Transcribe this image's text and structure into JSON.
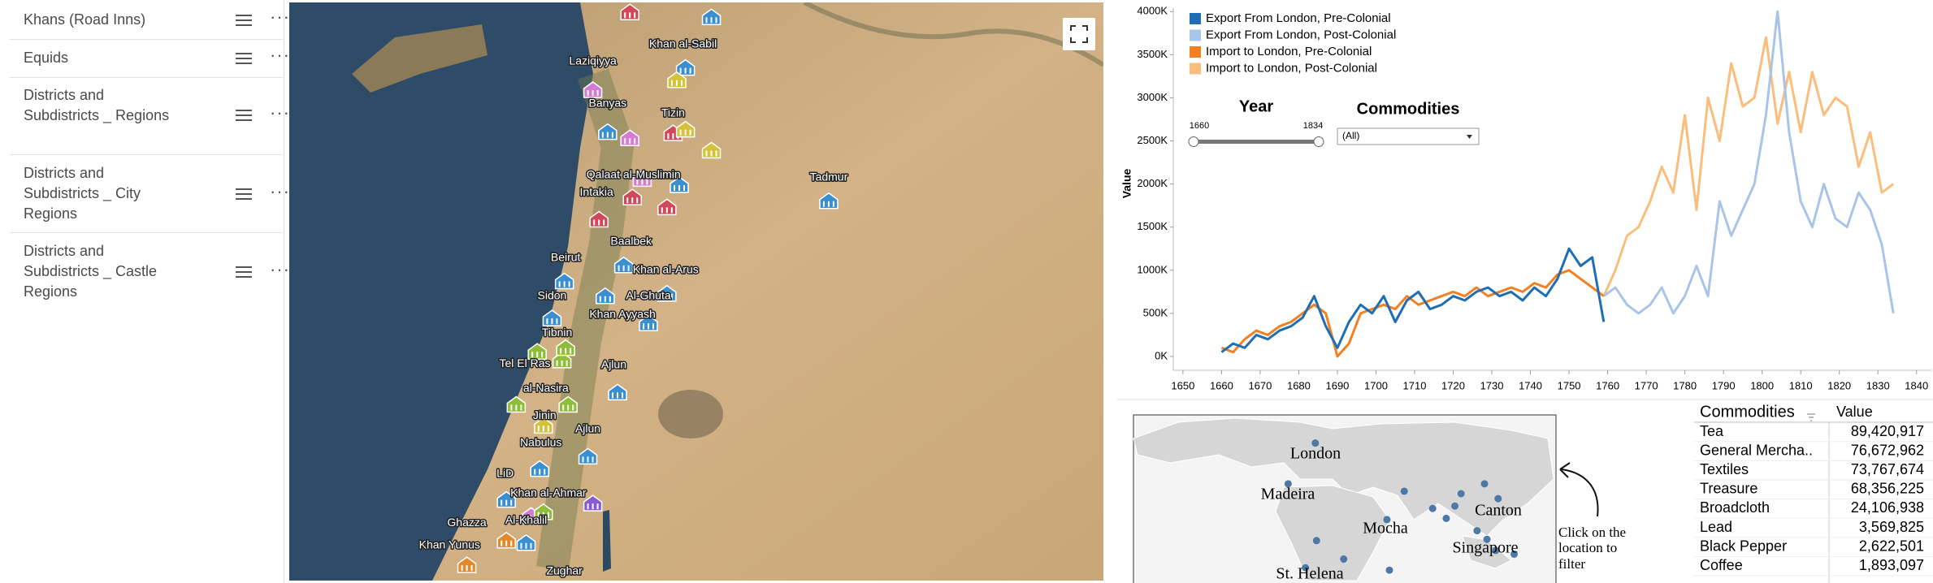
{
  "layers": [
    "Khans (Road Inns)",
    "Equids",
    "Districts and Subdistricts _ Regions",
    "Districts and Subdistricts _ City Regions",
    "Districts and Subdistricts _ Castle Regions"
  ],
  "map": {
    "labels": [
      "Laziqiyya",
      "Khan al-Sabil",
      "Banyas",
      "Tizin",
      "Qalaat al-Muslimin",
      "Intakia",
      "Tadmur",
      "Baalbek",
      "Beirut",
      "Khan al-Arus",
      "Sidon",
      "Al-Ghuta",
      "Khan Ayyash",
      "Tibnin",
      "Tel El Ras",
      "Ajlun",
      "al-Nasira",
      "Jinin",
      "Ajlun",
      "Nabulus",
      "LiD",
      "Khan al-Ahmar",
      "Ghazza",
      "Al-Khalil",
      "Khan Yunus",
      "Zughar"
    ]
  },
  "chart_data": {
    "type": "line",
    "y_label": "Value",
    "legend": "top-left",
    "grid": false,
    "x": [
      1660,
      1663,
      1666,
      1669,
      1672,
      1675,
      1678,
      1681,
      1684,
      1687,
      1690,
      1693,
      1696,
      1699,
      1702,
      1705,
      1708,
      1711,
      1714,
      1717,
      1720,
      1723,
      1726,
      1729,
      1732,
      1735,
      1738,
      1741,
      1744,
      1747,
      1750,
      1753,
      1756,
      1759,
      1762,
      1765,
      1768,
      1771,
      1774,
      1777,
      1780,
      1783,
      1786,
      1789,
      1792,
      1795,
      1798,
      1801,
      1804,
      1807,
      1810,
      1813,
      1816,
      1819,
      1822,
      1825,
      1828,
      1831,
      1834
    ],
    "xlim": [
      1647.5,
      1843
    ],
    "xticks": [
      1650,
      1660,
      1670,
      1680,
      1690,
      1700,
      1710,
      1720,
      1730,
      1740,
      1750,
      1760,
      1770,
      1780,
      1790,
      1800,
      1810,
      1820,
      1830,
      1840
    ],
    "ylim": [
      -160000,
      4040000
    ],
    "yticks": [
      {
        "value": 0,
        "label": "0K"
      },
      {
        "value": 500000,
        "label": "500K"
      },
      {
        "value": 1000000,
        "label": "1000K"
      },
      {
        "value": 1500000,
        "label": "1500K"
      },
      {
        "value": 2000000,
        "label": "2000K"
      },
      {
        "value": 2500000,
        "label": "2500K"
      },
      {
        "value": 3000000,
        "label": "3000K"
      },
      {
        "value": 3500000,
        "label": "3500K"
      },
      {
        "value": 4000000,
        "label": "4000K"
      }
    ],
    "series": [
      {
        "name": "Export From London, Pre-Colonial",
        "color": "#1f6db4",
        "values": [
          50000,
          150000,
          100000,
          250000,
          200000,
          300000,
          350000,
          450000,
          700000,
          350000,
          100000,
          400000,
          600000,
          500000,
          700000,
          400000,
          650000,
          750000,
          550000,
          600000,
          700000,
          650000,
          750000,
          800000,
          700000,
          750000,
          650000,
          800000,
          700000,
          900000,
          1250000,
          1050000,
          1150000,
          400000,
          null,
          null,
          null,
          null,
          null,
          null,
          null,
          null,
          null,
          null,
          null,
          null,
          null,
          null,
          null,
          null,
          null,
          null,
          null,
          null,
          null,
          null,
          null,
          null,
          null
        ]
      },
      {
        "name": "Export From London, Post-Colonial",
        "color": "#a8c4e8",
        "values": [
          null,
          null,
          null,
          null,
          null,
          null,
          null,
          null,
          null,
          null,
          null,
          null,
          null,
          null,
          null,
          null,
          null,
          null,
          null,
          null,
          null,
          null,
          null,
          null,
          null,
          null,
          null,
          null,
          null,
          null,
          null,
          null,
          null,
          700000,
          800000,
          600000,
          500000,
          600000,
          800000,
          500000,
          700000,
          1050000,
          700000,
          1800000,
          1400000,
          1700000,
          2000000,
          2800000,
          4000000,
          2600000,
          1800000,
          1500000,
          2000000,
          1600000,
          1500000,
          1900000,
          1700000,
          1300000,
          500000
        ]
      },
      {
        "name": "Import to London, Pre-Colonial",
        "color": "#f47f20",
        "values": [
          100000,
          50000,
          200000,
          300000,
          250000,
          350000,
          400000,
          500000,
          600000,
          500000,
          0,
          150000,
          500000,
          550000,
          600000,
          550000,
          700000,
          600000,
          650000,
          700000,
          750000,
          700000,
          800000,
          700000,
          750000,
          800000,
          750000,
          850000,
          800000,
          950000,
          1000000,
          900000,
          800000,
          700000,
          null,
          null,
          null,
          null,
          null,
          null,
          null,
          null,
          null,
          null,
          null,
          null,
          null,
          null,
          null,
          null,
          null,
          null,
          null,
          null,
          null,
          null,
          null,
          null,
          null
        ]
      },
      {
        "name": "Import to London, Post-Colonial",
        "color": "#fbbd7c",
        "values": [
          null,
          null,
          null,
          null,
          null,
          null,
          null,
          null,
          null,
          null,
          null,
          null,
          null,
          null,
          null,
          null,
          null,
          null,
          null,
          null,
          null,
          null,
          null,
          null,
          null,
          null,
          null,
          null,
          null,
          null,
          null,
          null,
          null,
          700000,
          1000000,
          1400000,
          1500000,
          1800000,
          2200000,
          1900000,
          2800000,
          1700000,
          3000000,
          2500000,
          3400000,
          2900000,
          3000000,
          3700000,
          2700000,
          3300000,
          2600000,
          3300000,
          2800000,
          3000000,
          2900000,
          2200000,
          2600000,
          1900000,
          2000000
        ]
      }
    ]
  },
  "filters": {
    "year": {
      "label": "Year",
      "min": 1660,
      "max": 1834
    },
    "commodities": {
      "label": "Commodities",
      "value": "(All)"
    }
  },
  "location_map": {
    "labels": [
      "London",
      "Madeira",
      "Mocha",
      "Canton",
      "Singapore",
      "St. Helena"
    ],
    "annotation": [
      "Click on the",
      "location to",
      "filter"
    ]
  },
  "table": {
    "header": [
      "Commodities",
      "Value"
    ],
    "rows": [
      [
        "Tea",
        "89,420,917"
      ],
      [
        "General Mercha..",
        "76,672,962"
      ],
      [
        "Textiles",
        "73,767,674"
      ],
      [
        "Treasure",
        "68,356,225"
      ],
      [
        "Broadcloth",
        "24,106,938"
      ],
      [
        "Lead",
        "3,569,825"
      ],
      [
        "Black Pepper",
        "2,622,501"
      ],
      [
        "Coffee",
        "1,893,097"
      ]
    ]
  }
}
